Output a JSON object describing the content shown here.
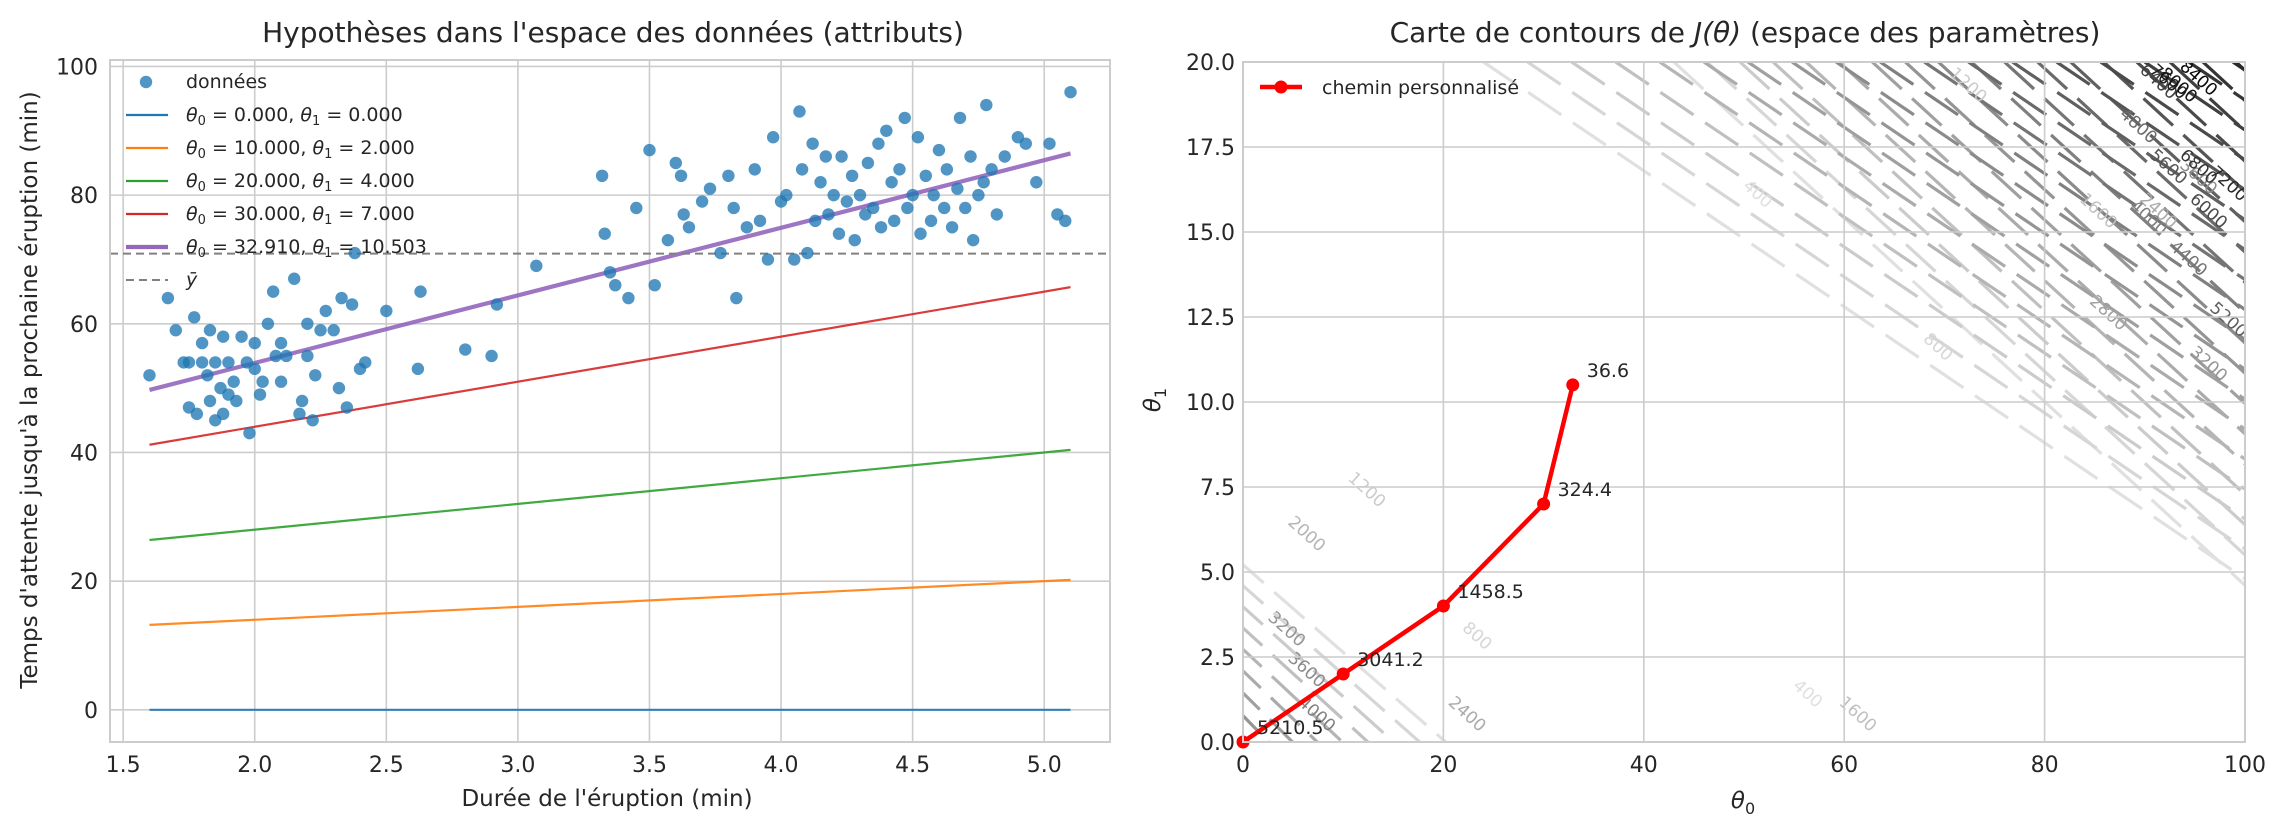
{
  "chart_data": [
    {
      "type": "scatter",
      "title": "Hypothèses dans l'espace des données (attributs)",
      "xlabel": "Durée de l'éruption (min)",
      "ylabel": "Temps d'attente jusqu'à la prochaine éruption (min)",
      "xlim": [
        1.45,
        5.25
      ],
      "ylim": [
        -5,
        101
      ],
      "xticks": [
        "1.5",
        "2.0",
        "2.5",
        "3.0",
        "3.5",
        "4.0",
        "4.5",
        "5.0"
      ],
      "yticks": [
        "0",
        "20",
        "40",
        "60",
        "80",
        "100"
      ],
      "grid": true,
      "legend_position": "top-left",
      "scatter": {
        "name": "données",
        "color": "#1f77b4",
        "points": [
          [
            1.6,
            52
          ],
          [
            1.67,
            64
          ],
          [
            1.7,
            59
          ],
          [
            1.73,
            54
          ],
          [
            1.75,
            47
          ],
          [
            1.75,
            54
          ],
          [
            1.77,
            61
          ],
          [
            1.78,
            46
          ],
          [
            1.8,
            54
          ],
          [
            1.8,
            57
          ],
          [
            1.82,
            52
          ],
          [
            1.83,
            59
          ],
          [
            1.83,
            48
          ],
          [
            1.85,
            45
          ],
          [
            1.85,
            54
          ],
          [
            1.87,
            50
          ],
          [
            1.88,
            58
          ],
          [
            1.88,
            46
          ],
          [
            1.9,
            54
          ],
          [
            1.9,
            49
          ],
          [
            1.92,
            51
          ],
          [
            1.93,
            48
          ],
          [
            1.95,
            58
          ],
          [
            1.97,
            54
          ],
          [
            1.98,
            43
          ],
          [
            2.0,
            57
          ],
          [
            2.0,
            53
          ],
          [
            2.02,
            49
          ],
          [
            2.03,
            51
          ],
          [
            2.05,
            60
          ],
          [
            2.07,
            65
          ],
          [
            2.08,
            55
          ],
          [
            2.1,
            57
          ],
          [
            2.1,
            51
          ],
          [
            2.12,
            55
          ],
          [
            2.15,
            67
          ],
          [
            2.17,
            46
          ],
          [
            2.18,
            48
          ],
          [
            2.2,
            60
          ],
          [
            2.2,
            55
          ],
          [
            2.22,
            45
          ],
          [
            2.23,
            52
          ],
          [
            2.25,
            59
          ],
          [
            2.27,
            62
          ],
          [
            2.3,
            59
          ],
          [
            2.32,
            50
          ],
          [
            2.33,
            64
          ],
          [
            2.35,
            47
          ],
          [
            2.37,
            63
          ],
          [
            2.38,
            71
          ],
          [
            2.4,
            53
          ],
          [
            2.42,
            54
          ],
          [
            2.5,
            62
          ],
          [
            2.62,
            53
          ],
          [
            2.63,
            65
          ],
          [
            2.8,
            56
          ],
          [
            2.9,
            55
          ],
          [
            2.92,
            63
          ],
          [
            3.07,
            69
          ],
          [
            3.32,
            83
          ],
          [
            3.33,
            74
          ],
          [
            3.35,
            68
          ],
          [
            3.37,
            66
          ],
          [
            3.42,
            64
          ],
          [
            3.45,
            78
          ],
          [
            3.5,
            87
          ],
          [
            3.52,
            66
          ],
          [
            3.57,
            73
          ],
          [
            3.6,
            85
          ],
          [
            3.62,
            83
          ],
          [
            3.63,
            77
          ],
          [
            3.65,
            75
          ],
          [
            3.7,
            79
          ],
          [
            3.73,
            81
          ],
          [
            3.77,
            71
          ],
          [
            3.8,
            83
          ],
          [
            3.82,
            78
          ],
          [
            3.83,
            64
          ],
          [
            3.87,
            75
          ],
          [
            3.9,
            84
          ],
          [
            3.92,
            76
          ],
          [
            3.95,
            70
          ],
          [
            3.97,
            89
          ],
          [
            4.0,
            79
          ],
          [
            4.02,
            80
          ],
          [
            4.05,
            70
          ],
          [
            4.07,
            93
          ],
          [
            4.08,
            84
          ],
          [
            4.1,
            71
          ],
          [
            4.12,
            88
          ],
          [
            4.13,
            76
          ],
          [
            4.15,
            82
          ],
          [
            4.17,
            86
          ],
          [
            4.18,
            77
          ],
          [
            4.2,
            80
          ],
          [
            4.22,
            74
          ],
          [
            4.23,
            86
          ],
          [
            4.25,
            79
          ],
          [
            4.27,
            83
          ],
          [
            4.28,
            73
          ],
          [
            4.3,
            80
          ],
          [
            4.32,
            77
          ],
          [
            4.33,
            85
          ],
          [
            4.35,
            78
          ],
          [
            4.37,
            88
          ],
          [
            4.38,
            75
          ],
          [
            4.4,
            90
          ],
          [
            4.42,
            82
          ],
          [
            4.43,
            76
          ],
          [
            4.45,
            84
          ],
          [
            4.47,
            92
          ],
          [
            4.48,
            78
          ],
          [
            4.5,
            80
          ],
          [
            4.52,
            89
          ],
          [
            4.53,
            74
          ],
          [
            4.55,
            83
          ],
          [
            4.57,
            76
          ],
          [
            4.58,
            80
          ],
          [
            4.6,
            87
          ],
          [
            4.62,
            78
          ],
          [
            4.63,
            84
          ],
          [
            4.65,
            75
          ],
          [
            4.67,
            81
          ],
          [
            4.68,
            92
          ],
          [
            4.7,
            78
          ],
          [
            4.72,
            86
          ],
          [
            4.73,
            73
          ],
          [
            4.75,
            80
          ],
          [
            4.77,
            82
          ],
          [
            4.78,
            94
          ],
          [
            4.8,
            84
          ],
          [
            4.82,
            77
          ],
          [
            4.85,
            86
          ],
          [
            4.9,
            89
          ],
          [
            4.93,
            88
          ],
          [
            4.97,
            82
          ],
          [
            5.02,
            88
          ],
          [
            5.05,
            77
          ],
          [
            5.08,
            76
          ],
          [
            5.1,
            96
          ]
        ]
      },
      "series": [
        {
          "name": "θ0 = 0.000,  θ1 = 0.000",
          "theta0": 0.0,
          "theta1": 0.0,
          "color": "#1f77b4"
        },
        {
          "name": "θ0 = 10.000,  θ1 = 2.000",
          "theta0": 10.0,
          "theta1": 2.0,
          "color": "#ff7f0e"
        },
        {
          "name": "θ0 = 20.000,  θ1 = 4.000",
          "theta0": 20.0,
          "theta1": 4.0,
          "color": "#2ca02c"
        },
        {
          "name": "θ0 = 30.000,  θ1 = 7.000",
          "theta0": 30.0,
          "theta1": 7.0,
          "color": "#d62728"
        },
        {
          "name": "θ0 = 32.910,  θ1 = 10.503",
          "theta0": 32.91,
          "theta1": 10.503,
          "color": "#9467bd"
        }
      ],
      "line_x_range": [
        1.6,
        5.1
      ],
      "mean_line": {
        "name": "ȳ",
        "value": 70.9,
        "color": "#808080"
      },
      "legend": {
        "scatter_label": "données",
        "items": [
          {
            "prefix_sym": "θ",
            "sub0": "0",
            "v0": " = 0.000,  ",
            "sub1": "1",
            "v1": " = 0.000"
          },
          {
            "prefix_sym": "θ",
            "sub0": "0",
            "v0": " = 10.000,  ",
            "sub1": "1",
            "v1": " = 2.000"
          },
          {
            "prefix_sym": "θ",
            "sub0": "0",
            "v0": " = 20.000,  ",
            "sub1": "1",
            "v1": " = 4.000"
          },
          {
            "prefix_sym": "θ",
            "sub0": "0",
            "v0": " = 30.000,  ",
            "sub1": "1",
            "v1": " = 7.000"
          },
          {
            "prefix_sym": "θ",
            "sub0": "0",
            "v0": " = 32.910,  ",
            "sub1": "1",
            "v1": " = 10.503"
          }
        ],
        "mean_label": "ȳ"
      }
    },
    {
      "type": "line",
      "title_pre": "Carte de contours de ",
      "title_math": "J(θ)",
      "title_post": " (espace des paramètres)",
      "xlabel": "θ0",
      "ylabel": "θ1",
      "xlim": [
        0,
        100
      ],
      "ylim": [
        0,
        20
      ],
      "xticks": [
        "0",
        "20",
        "40",
        "60",
        "80",
        "100"
      ],
      "yticks": [
        "0.0",
        "2.5",
        "5.0",
        "7.5",
        "10.0",
        "12.5",
        "15.0",
        "17.5",
        "20.0"
      ],
      "grid": true,
      "legend_position": "top-left",
      "contour_levels": [
        400,
        800,
        1200,
        1600,
        2000,
        2400,
        2800,
        3200,
        3600,
        4000,
        4400,
        4800,
        5200,
        5600,
        6000,
        6400,
        6800,
        7200,
        7600,
        8000,
        8400
      ],
      "contour_labels": [
        {
          "text": "400",
          "t0": 51.0,
          "t1": 16.0
        },
        {
          "text": "400",
          "t0": 56.0,
          "t1": 1.3
        },
        {
          "text": "800",
          "t0": 69.0,
          "t1": 11.5
        },
        {
          "text": "800",
          "t0": 23.0,
          "t1": 3.0
        },
        {
          "text": "1200",
          "t0": 72.0,
          "t1": 19.2
        },
        {
          "text": "1200",
          "t0": 12.0,
          "t1": 7.3
        },
        {
          "text": "1600",
          "t0": 85.0,
          "t1": 15.5
        },
        {
          "text": "1600",
          "t0": 61.0,
          "t1": 0.7
        },
        {
          "text": "2000",
          "t0": 93.0,
          "t1": 19.2
        },
        {
          "text": "2000",
          "t0": 6.0,
          "t1": 6.0
        },
        {
          "text": "2400",
          "t0": 91.0,
          "t1": 15.5
        },
        {
          "text": "2400",
          "t0": 22.0,
          "t1": 0.7
        },
        {
          "text": "2800",
          "t0": 86.0,
          "t1": 12.5
        },
        {
          "text": "3200",
          "t0": 96.0,
          "t1": 11.0
        },
        {
          "text": "3200",
          "t0": 4.0,
          "t1": 3.2
        },
        {
          "text": "3600",
          "t0": 95.0,
          "t1": 16.5
        },
        {
          "text": "3600",
          "t0": 6.0,
          "t1": 2.0
        },
        {
          "text": "4000",
          "t0": 90.0,
          "t1": 15.3
        },
        {
          "text": "4000",
          "t0": 7.0,
          "t1": 0.7
        },
        {
          "text": "4400",
          "t0": 94.0,
          "t1": 14.1
        },
        {
          "text": "4800",
          "t0": 89.0,
          "t1": 18.0
        },
        {
          "text": "5200",
          "t0": 98.0,
          "t1": 12.3
        },
        {
          "text": "5600",
          "t0": 92.0,
          "t1": 16.8
        },
        {
          "text": "6000",
          "t0": 96.0,
          "t1": 15.5
        },
        {
          "text": "6400",
          "t0": 91.0,
          "t1": 19.3
        },
        {
          "text": "6800",
          "t0": 95.0,
          "t1": 16.8
        },
        {
          "text": "7200",
          "t0": 98.0,
          "t1": 16.3
        },
        {
          "text": "7600",
          "t0": 92.0,
          "t1": 19.3
        },
        {
          "text": "8000",
          "t0": 93.0,
          "t1": 19.2
        },
        {
          "text": "8400",
          "t0": 95.0,
          "t1": 19.4
        }
      ],
      "path": {
        "name": "chemin personnalisé",
        "color": "#ff0000",
        "points": [
          {
            "t0": 0.0,
            "t1": 0.0,
            "label": "5210.5"
          },
          {
            "t0": 10.0,
            "t1": 2.0,
            "label": "3041.2"
          },
          {
            "t0": 20.0,
            "t1": 4.0,
            "label": "1458.5"
          },
          {
            "t0": 30.0,
            "t1": 7.0,
            "label": "324.4"
          },
          {
            "t0": 32.91,
            "t1": 10.503,
            "label": "36.6"
          }
        ]
      }
    }
  ]
}
